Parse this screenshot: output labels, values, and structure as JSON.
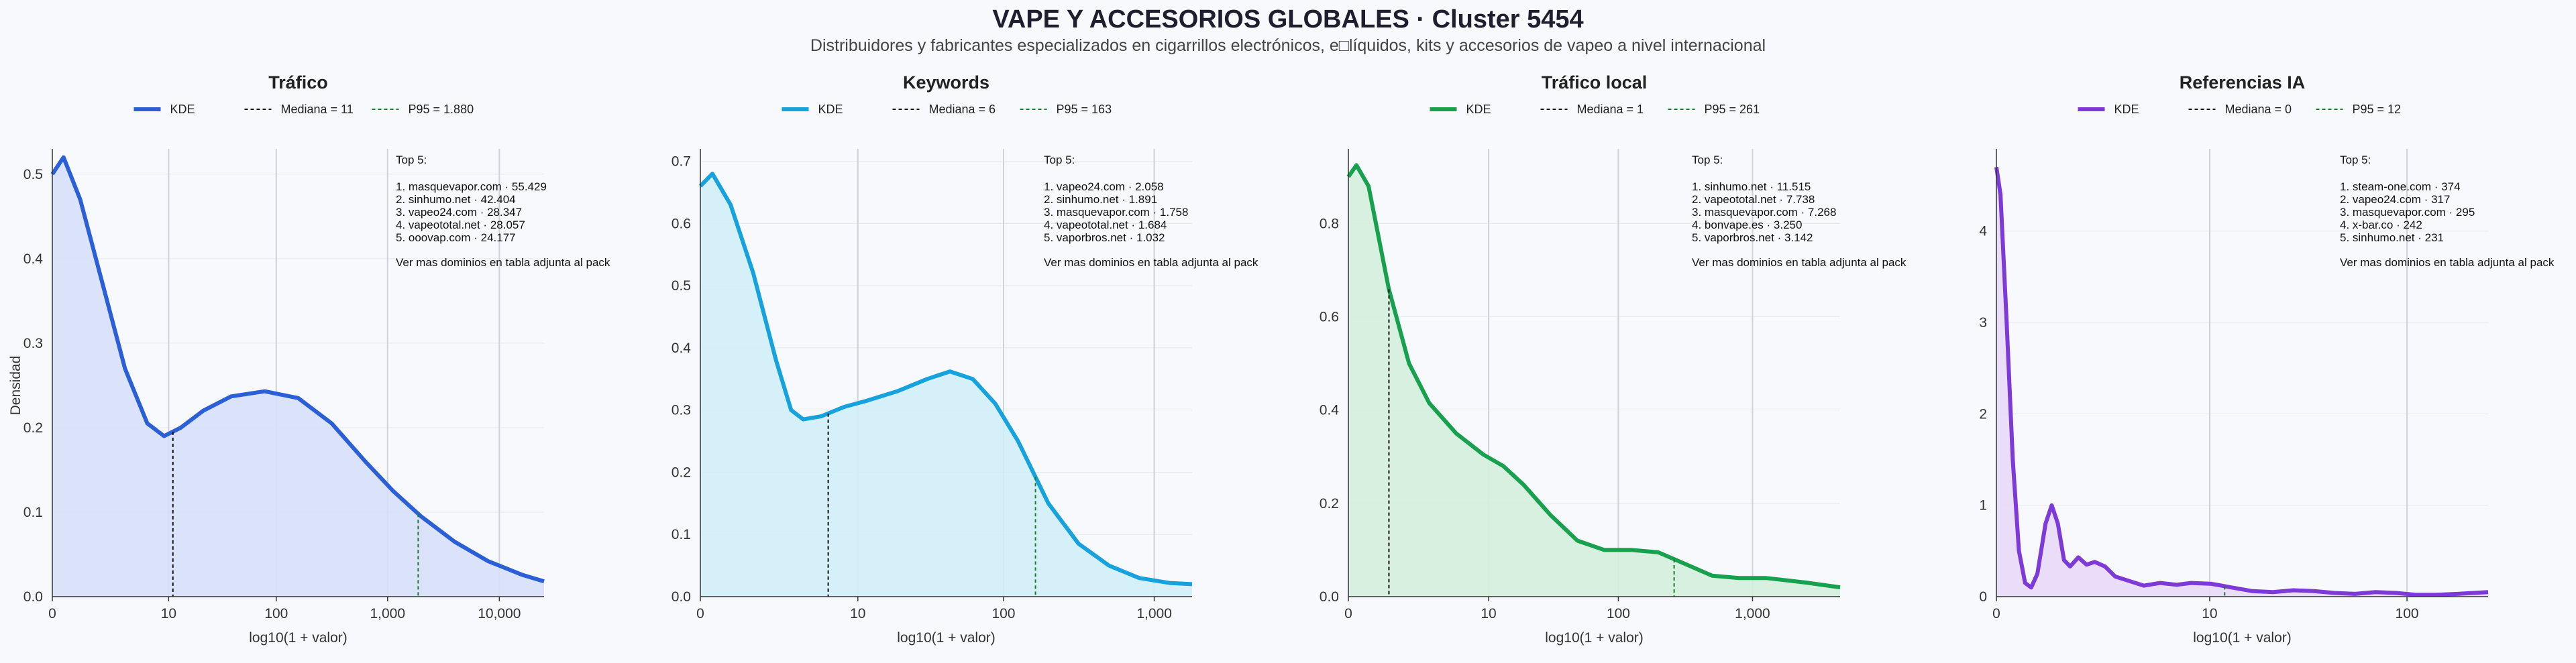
{
  "title": "VAPE Y ACCESORIOS GLOBALES · Cluster 5454",
  "subtitle": "Distribuidores y fabricantes especializados en cigarrillos electrónicos, e□líquidos, kits y accesorios de vapeo a nivel internacional",
  "y_axis_label": "Densidad",
  "x_axis_label": "log10(1 + valor)",
  "chart_data": [
    {
      "type": "area",
      "title": "Tráfico",
      "color": "#2a5fd8",
      "fill": "#d6e0f9",
      "legend": [
        "KDE",
        "Mediana = 11",
        "P95 = 1.880"
      ],
      "x_scale": "log10(1+x)",
      "xlim_log": [
        0,
        4.4
      ],
      "ylim": [
        0,
        0.53
      ],
      "y_ticks": [
        0.0,
        0.1,
        0.2,
        0.3,
        0.4,
        0.5
      ],
      "y_tick_labels": [
        "0.0",
        "0.1",
        "0.2",
        "0.3",
        "0.4",
        "0.5"
      ],
      "x_ticks_log": [
        0,
        1.041,
        2.004,
        3.0,
        4.0
      ],
      "x_tick_labels": [
        "0",
        "10",
        "100",
        "1,000",
        "10,000"
      ],
      "median": 11,
      "median_log": 1.079,
      "p95": 1880,
      "p95_log": 3.274,
      "curve": [
        [
          0,
          0.5
        ],
        [
          0.1,
          0.52
        ],
        [
          0.25,
          0.47
        ],
        [
          0.45,
          0.37
        ],
        [
          0.65,
          0.27
        ],
        [
          0.85,
          0.205
        ],
        [
          1.0,
          0.19
        ],
        [
          1.15,
          0.2
        ],
        [
          1.35,
          0.22
        ],
        [
          1.6,
          0.237
        ],
        [
          1.9,
          0.243
        ],
        [
          2.2,
          0.235
        ],
        [
          2.5,
          0.205
        ],
        [
          2.8,
          0.16
        ],
        [
          3.05,
          0.125
        ],
        [
          3.3,
          0.095
        ],
        [
          3.6,
          0.065
        ],
        [
          3.9,
          0.042
        ],
        [
          4.2,
          0.026
        ],
        [
          4.4,
          0.018
        ]
      ],
      "top5_title": "Top 5:",
      "top5": [
        "1. masquevapor.com · 55.429",
        "2. sinhumo.net · 42.404",
        "3. vapeo24.com · 28.347",
        "4. vapeototal.net · 28.057",
        "5. ooovap.com · 24.177"
      ],
      "footnote": "Ver mas dominios en tabla adjunta al pack"
    },
    {
      "type": "area",
      "title": "Keywords",
      "color": "#16a2dc",
      "fill": "#d2eefa",
      "legend": [
        "KDE",
        "Mediana = 6",
        "P95 = 163"
      ],
      "x_scale": "log10(1+x)",
      "xlim_log": [
        0,
        3.25
      ],
      "ylim": [
        0,
        0.72
      ],
      "y_ticks": [
        0.0,
        0.1,
        0.2,
        0.3,
        0.4,
        0.5,
        0.6,
        0.7
      ],
      "y_tick_labels": [
        "0.0",
        "0.1",
        "0.2",
        "0.3",
        "0.4",
        "0.5",
        "0.6",
        "0.7"
      ],
      "x_ticks_log": [
        0,
        1.041,
        2.004,
        3.0
      ],
      "x_tick_labels": [
        "0",
        "10",
        "100",
        "1,000"
      ],
      "median": 6,
      "median_log": 0.845,
      "p95": 163,
      "p95_log": 2.215,
      "curve": [
        [
          0,
          0.66
        ],
        [
          0.08,
          0.68
        ],
        [
          0.2,
          0.63
        ],
        [
          0.35,
          0.52
        ],
        [
          0.5,
          0.38
        ],
        [
          0.6,
          0.3
        ],
        [
          0.68,
          0.285
        ],
        [
          0.8,
          0.29
        ],
        [
          0.95,
          0.305
        ],
        [
          1.1,
          0.315
        ],
        [
          1.3,
          0.33
        ],
        [
          1.5,
          0.35
        ],
        [
          1.65,
          0.362
        ],
        [
          1.8,
          0.35
        ],
        [
          1.95,
          0.31
        ],
        [
          2.1,
          0.25
        ],
        [
          2.3,
          0.15
        ],
        [
          2.5,
          0.085
        ],
        [
          2.7,
          0.05
        ],
        [
          2.9,
          0.03
        ],
        [
          3.1,
          0.022
        ],
        [
          3.25,
          0.02
        ]
      ],
      "top5_title": "Top 5:",
      "top5": [
        "1. vapeo24.com · 2.058",
        "2. sinhumo.net · 1.891",
        "3. masquevapor.com · 1.758",
        "4. vapeototal.net · 1.684",
        "5. vaporbros.net · 1.032"
      ],
      "footnote": "Ver mas dominios en tabla adjunta al pack"
    },
    {
      "type": "area",
      "title": "Tráfico local",
      "color": "#17a04e",
      "fill": "#d4eedc",
      "legend": [
        "KDE",
        "Mediana = 1",
        "P95 = 261"
      ],
      "x_scale": "log10(1+x)",
      "xlim_log": [
        0,
        3.65
      ],
      "ylim": [
        0,
        0.96
      ],
      "y_ticks": [
        0.0,
        0.2,
        0.4,
        0.6,
        0.8
      ],
      "y_tick_labels": [
        "0.0",
        "0.2",
        "0.4",
        "0.6",
        "0.8"
      ],
      "x_ticks_log": [
        0,
        1.041,
        2.004,
        3.0
      ],
      "x_tick_labels": [
        "0",
        "10",
        "100",
        "1,000"
      ],
      "median": 1,
      "median_log": 0.301,
      "p95": 261,
      "p95_log": 2.418,
      "curve": [
        [
          0,
          0.9
        ],
        [
          0.06,
          0.925
        ],
        [
          0.15,
          0.88
        ],
        [
          0.3,
          0.66
        ],
        [
          0.45,
          0.5
        ],
        [
          0.6,
          0.415
        ],
        [
          0.8,
          0.35
        ],
        [
          1.0,
          0.305
        ],
        [
          1.15,
          0.28
        ],
        [
          1.3,
          0.24
        ],
        [
          1.5,
          0.175
        ],
        [
          1.7,
          0.12
        ],
        [
          1.9,
          0.1
        ],
        [
          2.1,
          0.1
        ],
        [
          2.3,
          0.095
        ],
        [
          2.5,
          0.07
        ],
        [
          2.7,
          0.045
        ],
        [
          2.9,
          0.04
        ],
        [
          3.1,
          0.04
        ],
        [
          3.4,
          0.03
        ],
        [
          3.65,
          0.02
        ]
      ],
      "top5_title": "Top 5:",
      "top5": [
        "1. sinhumo.net · 11.515",
        "2. vapeototal.net · 7.738",
        "3. masquevapor.com · 7.268",
        "4. bonvape.es · 3.250",
        "5. vaporbros.net · 3.142"
      ],
      "footnote": "Ver mas dominios en tabla adjunta al pack"
    },
    {
      "type": "area",
      "title": "Referencias IA",
      "color": "#7d3ad8",
      "fill": "#e8d9f8",
      "legend": [
        "KDE",
        "Mediana = 0",
        "P95 = 12"
      ],
      "x_scale": "log10(1+x)",
      "xlim_log": [
        0,
        2.4
      ],
      "ylim": [
        0,
        4.9
      ],
      "y_ticks": [
        0,
        1,
        2,
        3,
        4
      ],
      "y_tick_labels": [
        "0",
        "1",
        "2",
        "3",
        "4"
      ],
      "x_ticks_log": [
        0,
        1.041,
        2.004
      ],
      "x_tick_labels": [
        "0",
        "10",
        "100"
      ],
      "median": 0,
      "median_log": 0,
      "p95": 12,
      "p95_log": 1.114,
      "curve": [
        [
          0,
          4.7
        ],
        [
          0.02,
          4.4
        ],
        [
          0.05,
          3.0
        ],
        [
          0.08,
          1.5
        ],
        [
          0.11,
          0.5
        ],
        [
          0.14,
          0.15
        ],
        [
          0.17,
          0.1
        ],
        [
          0.2,
          0.25
        ],
        [
          0.24,
          0.8
        ],
        [
          0.27,
          1.0
        ],
        [
          0.3,
          0.8
        ],
        [
          0.33,
          0.4
        ],
        [
          0.36,
          0.33
        ],
        [
          0.4,
          0.43
        ],
        [
          0.44,
          0.35
        ],
        [
          0.48,
          0.38
        ],
        [
          0.53,
          0.33
        ],
        [
          0.58,
          0.22
        ],
        [
          0.65,
          0.17
        ],
        [
          0.72,
          0.12
        ],
        [
          0.8,
          0.15
        ],
        [
          0.88,
          0.13
        ],
        [
          0.95,
          0.15
        ],
        [
          1.05,
          0.14
        ],
        [
          1.15,
          0.1
        ],
        [
          1.25,
          0.06
        ],
        [
          1.35,
          0.05
        ],
        [
          1.45,
          0.07
        ],
        [
          1.55,
          0.06
        ],
        [
          1.65,
          0.04
        ],
        [
          1.75,
          0.03
        ],
        [
          1.85,
          0.05
        ],
        [
          1.95,
          0.04
        ],
        [
          2.05,
          0.02
        ],
        [
          2.15,
          0.02
        ],
        [
          2.25,
          0.03
        ],
        [
          2.4,
          0.05
        ]
      ],
      "top5_title": "Top 5:",
      "top5": [
        "1. steam-one.com · 374",
        "2. vapeo24.com · 317",
        "3. masquevapor.com · 295",
        "4. x-bar.co · 242",
        "5. sinhumo.net · 231"
      ],
      "footnote": "Ver mas dominios en tabla adjunta al pack"
    }
  ]
}
